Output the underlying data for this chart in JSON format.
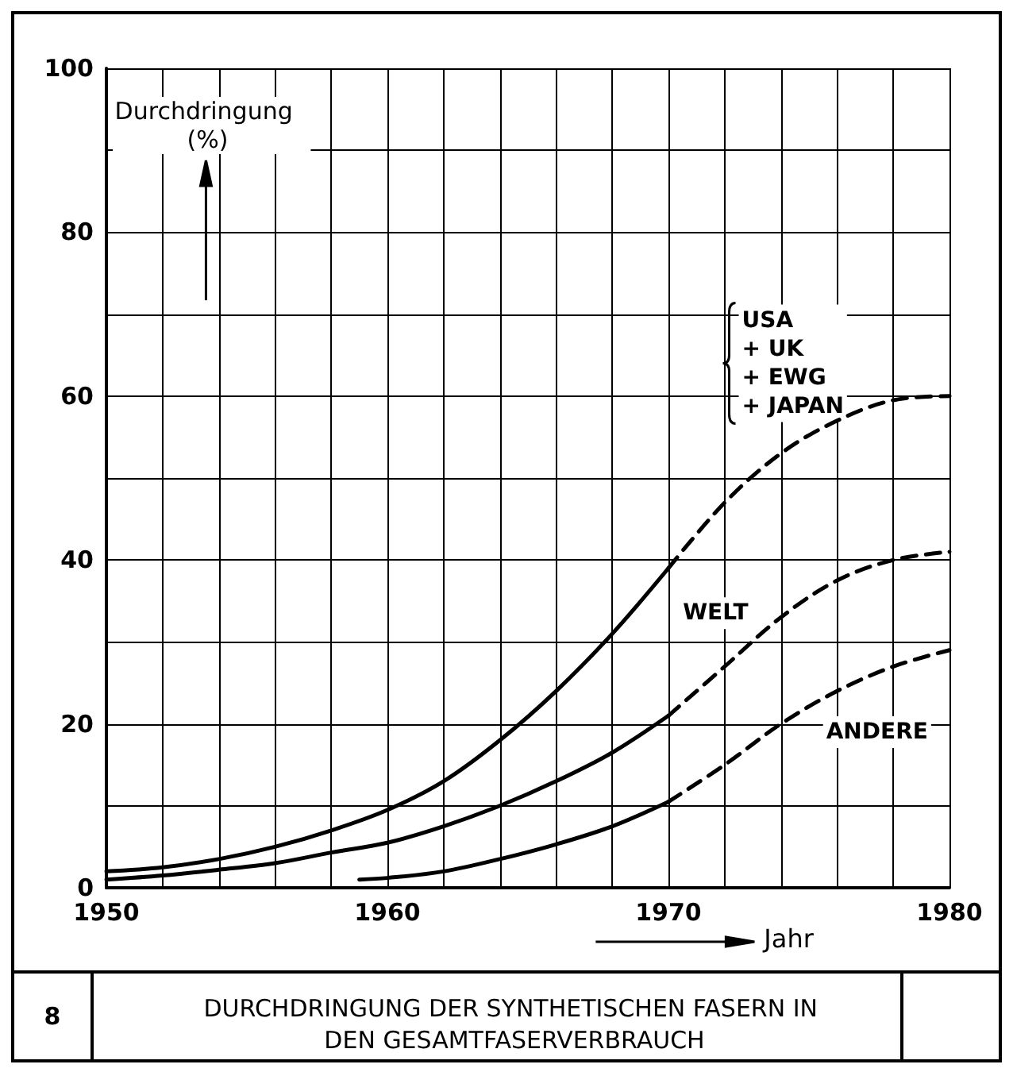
{
  "chart_data": {
    "type": "line",
    "title": "DURCHDRINGUNG DER SYNTHETISCHEN FASERN IN DEN GESAMTFASERVERBRAUCH",
    "xlabel": "Jahr",
    "ylabel": "Durchdringung (%)",
    "annotations": [
      "8"
    ],
    "series": [
      {
        "name": "USA\n+ UK\n+ EWG\n+ JAPAN",
        "color": "#000000",
        "line_style": "solid",
        "x": [
          1950,
          1952,
          1954,
          1956,
          1958,
          1960,
          1962,
          1964,
          1966,
          1968,
          1970
        ],
        "values": [
          2,
          2.5,
          3.5,
          5,
          7,
          9.5,
          13,
          18,
          24,
          31,
          39
        ]
      },
      {
        "color": "#000000",
        "line_style": "dashed",
        "x": [
          1970,
          1972,
          1974,
          1976,
          1978,
          1980
        ],
        "values": [
          39,
          47,
          53,
          57,
          59.5,
          60
        ]
      },
      {
        "name": "WELT",
        "color": "#000000",
        "line_style": "solid",
        "x": [
          1950,
          1952,
          1954,
          1956,
          1958,
          1960,
          1962,
          1964,
          1966,
          1968,
          1970
        ],
        "values": [
          1,
          1.5,
          2.2,
          3,
          4.3,
          5.5,
          7.5,
          10,
          13,
          16.5,
          21
        ]
      },
      {
        "color": "#000000",
        "line_style": "dashed",
        "x": [
          1970,
          1972,
          1974,
          1976,
          1978,
          1980
        ],
        "values": [
          21,
          27,
          33,
          37.5,
          40,
          41
        ]
      },
      {
        "name": "ANDERE",
        "color": "#000000",
        "line_style": "solid",
        "x": [
          1959,
          1960,
          1962,
          1964,
          1966,
          1968,
          1970
        ],
        "values": [
          1,
          1.2,
          2,
          3.5,
          5.3,
          7.5,
          10.5
        ]
      },
      {
        "color": "#000000",
        "line_style": "dashed",
        "x": [
          1970,
          1972,
          1974,
          1976,
          1978,
          1980
        ],
        "values": [
          10.5,
          15,
          20,
          24,
          27,
          29
        ]
      }
    ],
    "xlim": [
      1950,
      1980
    ],
    "xticks": [
      1950,
      {
        "value": 1952,
        "label": null
      },
      {
        "value": 1954,
        "label": null
      },
      {
        "value": 1956,
        "label": null
      },
      {
        "value": 1958,
        "label": null
      },
      1960,
      {
        "value": 1962,
        "label": null
      },
      {
        "value": 1964,
        "label": null
      },
      {
        "value": 1966,
        "label": null
      },
      {
        "value": 1968,
        "label": null
      },
      1970,
      {
        "value": 1972,
        "label": null
      },
      {
        "value": 1974,
        "label": null
      },
      {
        "value": 1976,
        "label": null
      },
      {
        "value": 1978,
        "label": null
      },
      1980
    ],
    "ylim": [
      0,
      100
    ],
    "yticks": [
      0,
      {
        "value": 10,
        "label": null
      },
      20,
      {
        "value": 30,
        "label": null
      },
      40,
      {
        "value": 50,
        "label": null
      },
      60,
      {
        "value": 70,
        "label": null
      },
      80,
      {
        "value": 90,
        "label": null
      },
      100
    ],
    "grid": true,
    "legend": false,
    "marker": "none"
  }
}
